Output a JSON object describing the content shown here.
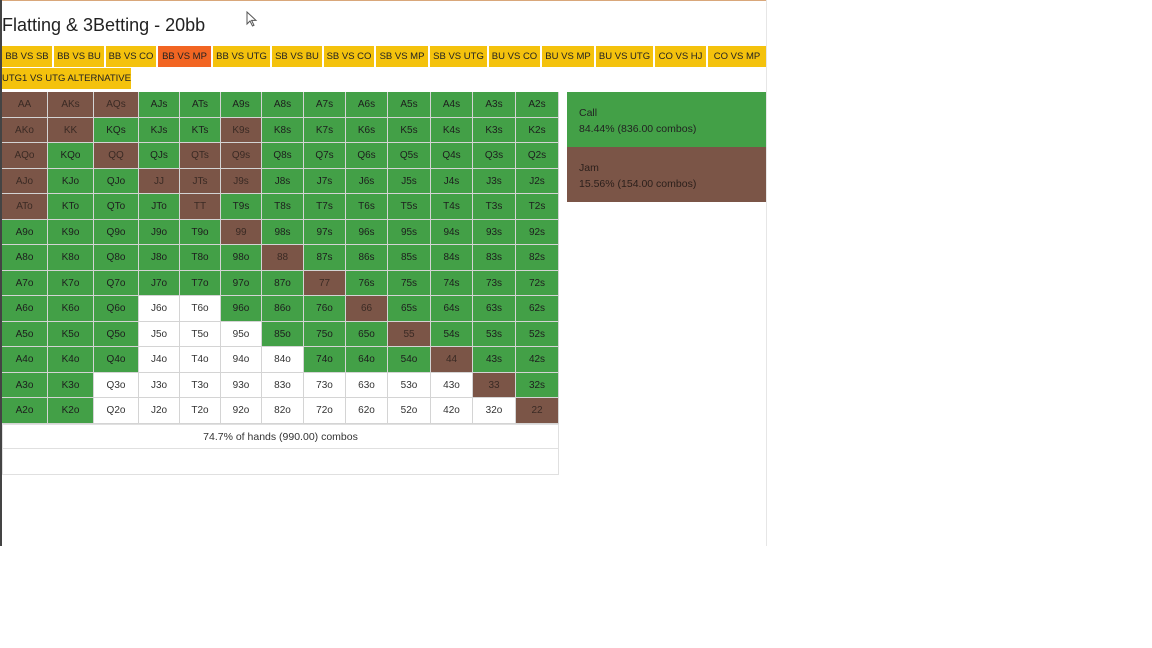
{
  "title": "Flatting & 3Betting - 20bb",
  "tabs": [
    {
      "label": "BB VS SB",
      "active": false
    },
    {
      "label": "BB VS BU",
      "active": false
    },
    {
      "label": "BB VS CO",
      "active": false
    },
    {
      "label": "BB VS MP",
      "active": true
    },
    {
      "label": "BB VS UTG",
      "active": false
    },
    {
      "label": "SB VS BU",
      "active": false
    },
    {
      "label": "SB VS CO",
      "active": false
    },
    {
      "label": "SB VS MP",
      "active": false
    },
    {
      "label": "SB VS UTG",
      "active": false
    },
    {
      "label": "BU VS CO",
      "active": false
    },
    {
      "label": "BU VS MP",
      "active": false
    },
    {
      "label": "BU VS UTG",
      "active": false
    },
    {
      "label": "CO VS HJ",
      "active": false
    },
    {
      "label": "CO VS MP",
      "active": false
    },
    {
      "label": "UTG1 VS UTG ALTERNATIVE",
      "active": false
    }
  ],
  "colors": {
    "call": "#43a047",
    "jam": "#7b5547",
    "fold": "#ffffff",
    "tab": "#f4c20d",
    "tab_active": "#f26522"
  },
  "grid": [
    [
      [
        "AA",
        "jam"
      ],
      [
        "AKs",
        "jam"
      ],
      [
        "AQs",
        "jam"
      ],
      [
        "AJs",
        "call"
      ],
      [
        "ATs",
        "call"
      ],
      [
        "A9s",
        "call"
      ],
      [
        "A8s",
        "call"
      ],
      [
        "A7s",
        "call"
      ],
      [
        "A6s",
        "call"
      ],
      [
        "A5s",
        "call"
      ],
      [
        "A4s",
        "call"
      ],
      [
        "A3s",
        "call"
      ],
      [
        "A2s",
        "call"
      ]
    ],
    [
      [
        "AKo",
        "jam"
      ],
      [
        "KK",
        "jam"
      ],
      [
        "KQs",
        "call"
      ],
      [
        "KJs",
        "call"
      ],
      [
        "KTs",
        "call"
      ],
      [
        "K9s",
        "jam"
      ],
      [
        "K8s",
        "call"
      ],
      [
        "K7s",
        "call"
      ],
      [
        "K6s",
        "call"
      ],
      [
        "K5s",
        "call"
      ],
      [
        "K4s",
        "call"
      ],
      [
        "K3s",
        "call"
      ],
      [
        "K2s",
        "call"
      ]
    ],
    [
      [
        "AQo",
        "jam"
      ],
      [
        "KQo",
        "call"
      ],
      [
        "QQ",
        "jam"
      ],
      [
        "QJs",
        "call"
      ],
      [
        "QTs",
        "jam"
      ],
      [
        "Q9s",
        "jam"
      ],
      [
        "Q8s",
        "call"
      ],
      [
        "Q7s",
        "call"
      ],
      [
        "Q6s",
        "call"
      ],
      [
        "Q5s",
        "call"
      ],
      [
        "Q4s",
        "call"
      ],
      [
        "Q3s",
        "call"
      ],
      [
        "Q2s",
        "call"
      ]
    ],
    [
      [
        "AJo",
        "jam"
      ],
      [
        "KJo",
        "call"
      ],
      [
        "QJo",
        "call"
      ],
      [
        "JJ",
        "jam"
      ],
      [
        "JTs",
        "jam"
      ],
      [
        "J9s",
        "jam"
      ],
      [
        "J8s",
        "call"
      ],
      [
        "J7s",
        "call"
      ],
      [
        "J6s",
        "call"
      ],
      [
        "J5s",
        "call"
      ],
      [
        "J4s",
        "call"
      ],
      [
        "J3s",
        "call"
      ],
      [
        "J2s",
        "call"
      ]
    ],
    [
      [
        "ATo",
        "jam"
      ],
      [
        "KTo",
        "call"
      ],
      [
        "QTo",
        "call"
      ],
      [
        "JTo",
        "call"
      ],
      [
        "TT",
        "jam"
      ],
      [
        "T9s",
        "call"
      ],
      [
        "T8s",
        "call"
      ],
      [
        "T7s",
        "call"
      ],
      [
        "T6s",
        "call"
      ],
      [
        "T5s",
        "call"
      ],
      [
        "T4s",
        "call"
      ],
      [
        "T3s",
        "call"
      ],
      [
        "T2s",
        "call"
      ]
    ],
    [
      [
        "A9o",
        "call"
      ],
      [
        "K9o",
        "call"
      ],
      [
        "Q9o",
        "call"
      ],
      [
        "J9o",
        "call"
      ],
      [
        "T9o",
        "call"
      ],
      [
        "99",
        "jam"
      ],
      [
        "98s",
        "call"
      ],
      [
        "97s",
        "call"
      ],
      [
        "96s",
        "call"
      ],
      [
        "95s",
        "call"
      ],
      [
        "94s",
        "call"
      ],
      [
        "93s",
        "call"
      ],
      [
        "92s",
        "call"
      ]
    ],
    [
      [
        "A8o",
        "call"
      ],
      [
        "K8o",
        "call"
      ],
      [
        "Q8o",
        "call"
      ],
      [
        "J8o",
        "call"
      ],
      [
        "T8o",
        "call"
      ],
      [
        "98o",
        "call"
      ],
      [
        "88",
        "jam"
      ],
      [
        "87s",
        "call"
      ],
      [
        "86s",
        "call"
      ],
      [
        "85s",
        "call"
      ],
      [
        "84s",
        "call"
      ],
      [
        "83s",
        "call"
      ],
      [
        "82s",
        "call"
      ]
    ],
    [
      [
        "A7o",
        "call"
      ],
      [
        "K7o",
        "call"
      ],
      [
        "Q7o",
        "call"
      ],
      [
        "J7o",
        "call"
      ],
      [
        "T7o",
        "call"
      ],
      [
        "97o",
        "call"
      ],
      [
        "87o",
        "call"
      ],
      [
        "77",
        "jam"
      ],
      [
        "76s",
        "call"
      ],
      [
        "75s",
        "call"
      ],
      [
        "74s",
        "call"
      ],
      [
        "73s",
        "call"
      ],
      [
        "72s",
        "call"
      ]
    ],
    [
      [
        "A6o",
        "call"
      ],
      [
        "K6o",
        "call"
      ],
      [
        "Q6o",
        "call"
      ],
      [
        "J6o",
        "fold"
      ],
      [
        "T6o",
        "fold"
      ],
      [
        "96o",
        "call"
      ],
      [
        "86o",
        "call"
      ],
      [
        "76o",
        "call"
      ],
      [
        "66",
        "jam"
      ],
      [
        "65s",
        "call"
      ],
      [
        "64s",
        "call"
      ],
      [
        "63s",
        "call"
      ],
      [
        "62s",
        "call"
      ]
    ],
    [
      [
        "A5o",
        "call"
      ],
      [
        "K5o",
        "call"
      ],
      [
        "Q5o",
        "call"
      ],
      [
        "J5o",
        "fold"
      ],
      [
        "T5o",
        "fold"
      ],
      [
        "95o",
        "fold"
      ],
      [
        "85o",
        "call"
      ],
      [
        "75o",
        "call"
      ],
      [
        "65o",
        "call"
      ],
      [
        "55",
        "jam"
      ],
      [
        "54s",
        "call"
      ],
      [
        "53s",
        "call"
      ],
      [
        "52s",
        "call"
      ]
    ],
    [
      [
        "A4o",
        "call"
      ],
      [
        "K4o",
        "call"
      ],
      [
        "Q4o",
        "call"
      ],
      [
        "J4o",
        "fold"
      ],
      [
        "T4o",
        "fold"
      ],
      [
        "94o",
        "fold"
      ],
      [
        "84o",
        "fold"
      ],
      [
        "74o",
        "call"
      ],
      [
        "64o",
        "call"
      ],
      [
        "54o",
        "call"
      ],
      [
        "44",
        "jam"
      ],
      [
        "43s",
        "call"
      ],
      [
        "42s",
        "call"
      ]
    ],
    [
      [
        "A3o",
        "call"
      ],
      [
        "K3o",
        "call"
      ],
      [
        "Q3o",
        "fold"
      ],
      [
        "J3o",
        "fold"
      ],
      [
        "T3o",
        "fold"
      ],
      [
        "93o",
        "fold"
      ],
      [
        "83o",
        "fold"
      ],
      [
        "73o",
        "fold"
      ],
      [
        "63o",
        "fold"
      ],
      [
        "53o",
        "fold"
      ],
      [
        "43o",
        "fold"
      ],
      [
        "33",
        "jam"
      ],
      [
        "32s",
        "call"
      ]
    ],
    [
      [
        "A2o",
        "call"
      ],
      [
        "K2o",
        "call"
      ],
      [
        "Q2o",
        "fold"
      ],
      [
        "J2o",
        "fold"
      ],
      [
        "T2o",
        "fold"
      ],
      [
        "92o",
        "fold"
      ],
      [
        "82o",
        "fold"
      ],
      [
        "72o",
        "fold"
      ],
      [
        "62o",
        "fold"
      ],
      [
        "52o",
        "fold"
      ],
      [
        "42o",
        "fold"
      ],
      [
        "32o",
        "fold"
      ],
      [
        "22",
        "jam"
      ]
    ]
  ],
  "summary": "74.7% of hands (990.00) combos",
  "legend": [
    {
      "action": "Call",
      "stats": "84.44% (836.00 combos)"
    },
    {
      "action": "Jam",
      "stats": "15.56% (154.00 combos)"
    }
  ]
}
